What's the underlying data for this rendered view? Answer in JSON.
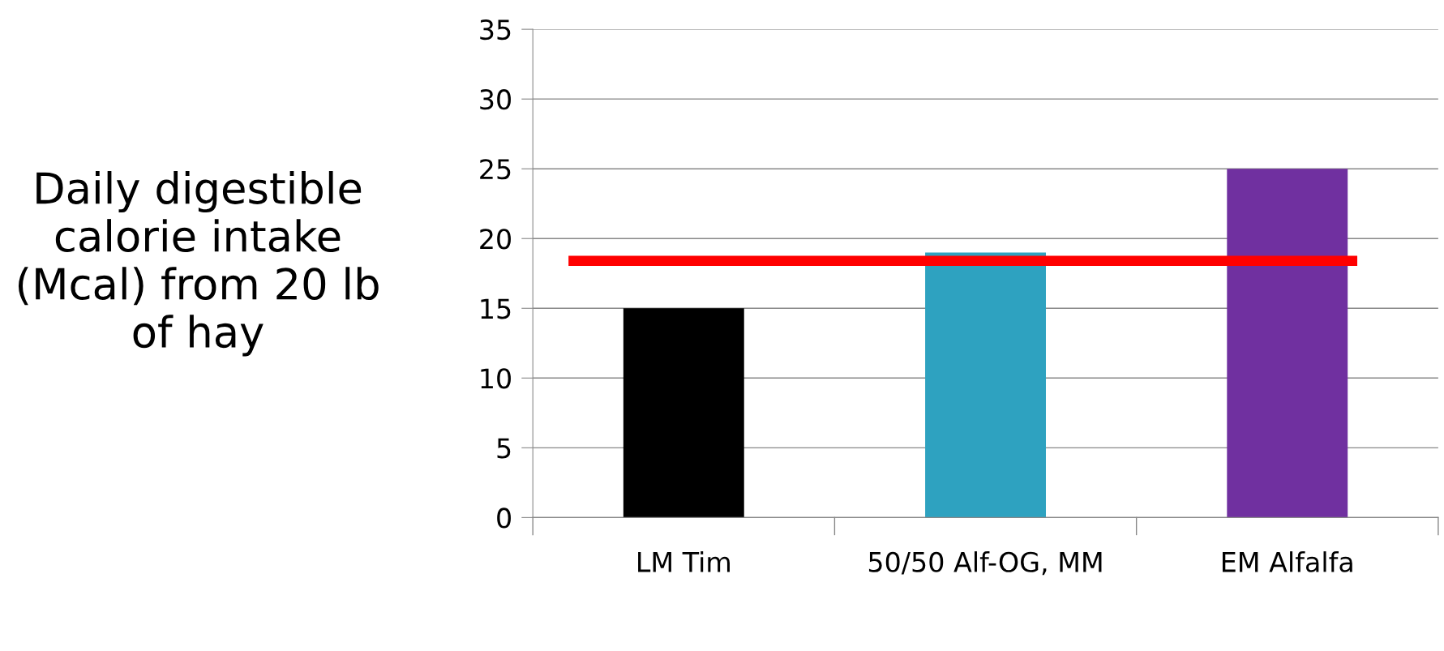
{
  "chart_data": {
    "type": "bar",
    "ylabel": "Daily digestible calorie intake (Mcal) from 20 lb of hay",
    "categories": [
      "LM Tim",
      "50/50 Alf-OG, MM",
      "EM Alfalfa"
    ],
    "values": [
      15,
      19,
      25
    ],
    "colors": [
      "#000000",
      "#2ea2c0",
      "#7030a0"
    ],
    "ylim": [
      0,
      35
    ],
    "yticks": [
      0,
      5,
      10,
      15,
      20,
      25,
      30,
      35
    ],
    "grid": "y",
    "ref_lines": [
      {
        "axis": "y",
        "value": 18.4,
        "color": "#ff0000"
      }
    ]
  }
}
